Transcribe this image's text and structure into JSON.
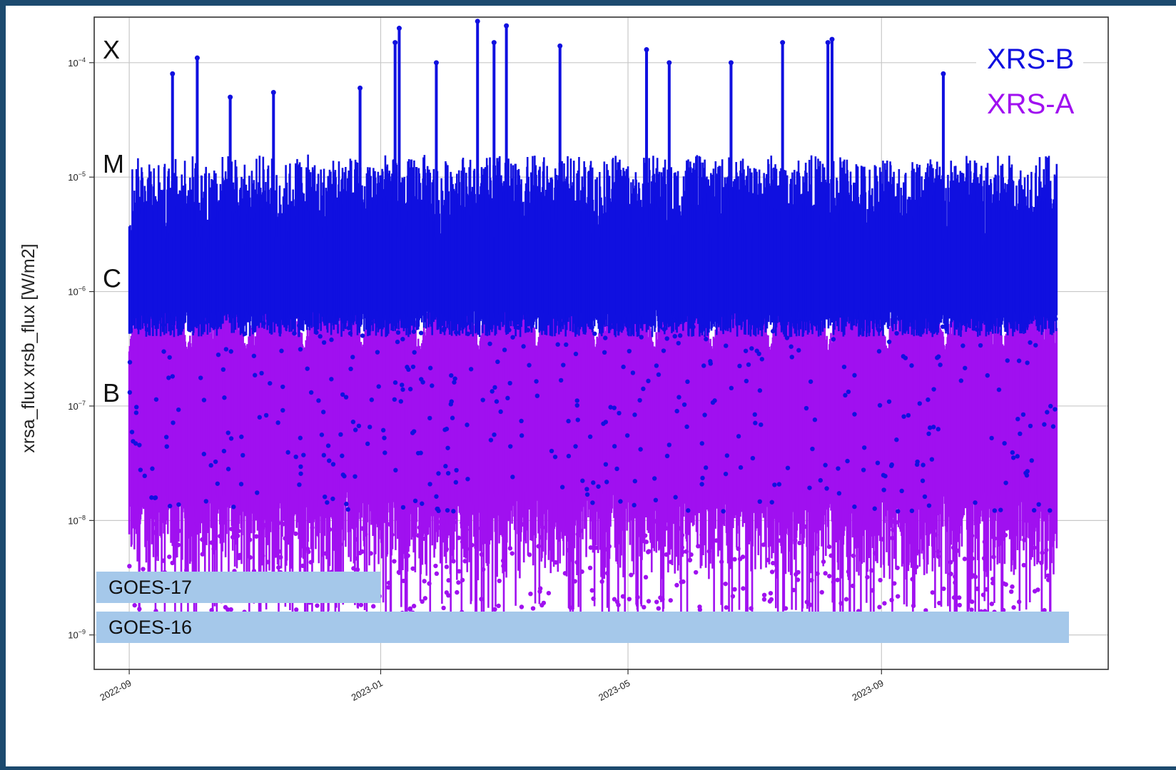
{
  "chart_data": {
    "type": "scatter",
    "ylabel": "xrsa_flux xrsb_flux [W/m2]",
    "yscale": "log",
    "ylim": [
      5e-10,
      0.00025
    ],
    "xlim": [
      "2022-08-15",
      "2023-12-20"
    ],
    "grid": true,
    "y_ticks": [
      {
        "value": 1e-09,
        "mantissa": "10",
        "exp": "−9"
      },
      {
        "value": 1e-08,
        "mantissa": "10",
        "exp": "−8"
      },
      {
        "value": 1e-07,
        "mantissa": "10",
        "exp": "−7"
      },
      {
        "value": 1e-06,
        "mantissa": "10",
        "exp": "−6"
      },
      {
        "value": 1e-05,
        "mantissa": "10",
        "exp": "−5"
      },
      {
        "value": 0.0001,
        "mantissa": "10",
        "exp": "−4"
      }
    ],
    "x_ticks": [
      {
        "date": "2022-09-01",
        "label": "2022-09"
      },
      {
        "date": "2023-01-01",
        "label": "2023-01"
      },
      {
        "date": "2023-05-01",
        "label": "2023-05"
      },
      {
        "date": "2023-09-01",
        "label": "2023-09"
      }
    ],
    "flare_classes": [
      {
        "label": "X",
        "level": 0.0001
      },
      {
        "label": "M",
        "level": 1e-05
      },
      {
        "label": "C",
        "level": 1e-06
      },
      {
        "label": "B",
        "level": 1e-07
      }
    ],
    "series": [
      {
        "name": "XRS-B",
        "color": "#1010e0",
        "data_start": "2022-09-01",
        "data_end": "2023-11-25",
        "typical_range": [
          5e-07,
          3e-06
        ],
        "peaks": [
          {
            "date": "2022-09-22",
            "value": 8e-05
          },
          {
            "date": "2022-10-04",
            "value": 0.00011
          },
          {
            "date": "2022-10-20",
            "value": 5e-05
          },
          {
            "date": "2022-11-10",
            "value": 5.5e-05
          },
          {
            "date": "2022-12-22",
            "value": 6e-05
          },
          {
            "date": "2023-01-08",
            "value": 0.00015
          },
          {
            "date": "2023-01-10",
            "value": 0.0002
          },
          {
            "date": "2023-01-28",
            "value": 0.0001
          },
          {
            "date": "2023-02-17",
            "value": 0.00023
          },
          {
            "date": "2023-02-25",
            "value": 0.00015
          },
          {
            "date": "2023-03-03",
            "value": 0.00021
          },
          {
            "date": "2023-03-29",
            "value": 0.00014
          },
          {
            "date": "2023-05-10",
            "value": 0.00013
          },
          {
            "date": "2023-05-21",
            "value": 0.0001
          },
          {
            "date": "2023-06-20",
            "value": 0.0001
          },
          {
            "date": "2023-07-15",
            "value": 0.00015
          },
          {
            "date": "2023-08-06",
            "value": 0.00015
          },
          {
            "date": "2023-08-08",
            "value": 0.00016
          },
          {
            "date": "2023-10-01",
            "value": 8e-05
          }
        ]
      },
      {
        "name": "XRS-A",
        "color": "#a010f0",
        "data_start": "2022-09-01",
        "data_end": "2023-11-25",
        "typical_range": [
          1e-08,
          5e-07
        ],
        "floor": 1e-09
      }
    ],
    "legend": {
      "placement": "top-right",
      "entries": [
        {
          "label": "XRS-B",
          "color": "#1010e0"
        },
        {
          "label": "XRS-A",
          "color": "#a010f0"
        }
      ]
    },
    "coverage_bars": [
      {
        "label": "GOES-17",
        "start": "2022-08-15",
        "end": "2023-01-01",
        "color": "#a5c8ea"
      },
      {
        "label": "GOES-16",
        "start": "2022-08-15",
        "end": "2023-12-20",
        "color": "#a5c8ea"
      }
    ]
  }
}
